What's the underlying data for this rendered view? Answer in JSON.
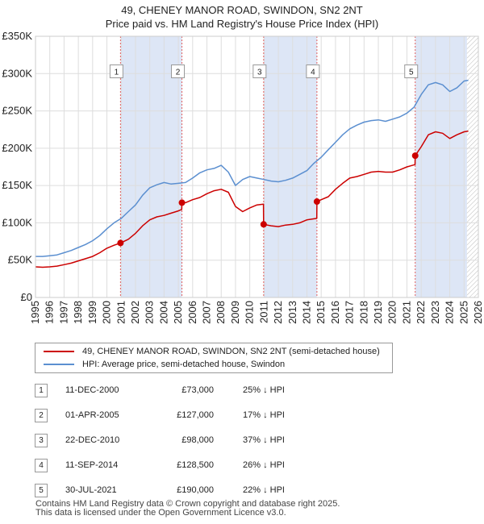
{
  "title_line1": "49, CHENEY MANOR ROAD, SWINDON, SN2 2NT",
  "title_line2": "Price paid vs. HM Land Registry's House Price Index (HPI)",
  "colors": {
    "price": "#cc0000",
    "hpi": "#5b8fd0",
    "shade": "#dde6f6",
    "marker_line": "#e06060"
  },
  "chart_data": {
    "type": "line",
    "xlim": [
      1995,
      2026
    ],
    "ylim": [
      0,
      350000
    ],
    "y_ticks": [
      {
        "value": 0,
        "label": "£0"
      },
      {
        "value": 50000,
        "label": "£50K"
      },
      {
        "value": 100000,
        "label": "£100K"
      },
      {
        "value": 150000,
        "label": "£150K"
      },
      {
        "value": 200000,
        "label": "£200K"
      },
      {
        "value": 250000,
        "label": "£250K"
      },
      {
        "value": 300000,
        "label": "£300K"
      },
      {
        "value": 350000,
        "label": "£350K"
      }
    ],
    "x_ticks": [
      "1995",
      "1996",
      "1997",
      "1998",
      "1999",
      "2000",
      "2001",
      "2002",
      "2003",
      "2004",
      "2005",
      "2006",
      "2007",
      "2008",
      "2009",
      "2010",
      "2011",
      "2012",
      "2013",
      "2014",
      "2015",
      "2016",
      "2017",
      "2018",
      "2019",
      "2020",
      "2021",
      "2022",
      "2023",
      "2024",
      "2025",
      "2026"
    ],
    "shaded_ranges": [
      [
        2000.95,
        2005.25
      ],
      [
        2010.97,
        2014.7
      ],
      [
        2021.58,
        2025.2
      ]
    ],
    "hatch_from": 2025.2,
    "series": [
      {
        "name": "49, CHENEY MANOR ROAD, SWINDON, SN2 2NT (semi-detached house)",
        "key": "price",
        "x": [
          1995.0,
          1995.5,
          1996.0,
          1996.5,
          1997.0,
          1997.5,
          1998.0,
          1998.5,
          1999.0,
          1999.5,
          2000.0,
          2000.5,
          2000.95,
          2001.5,
          2002.0,
          2002.5,
          2003.0,
          2003.5,
          2004.0,
          2004.5,
          2005.0,
          2005.24,
          2005.25,
          2005.5,
          2006.0,
          2006.5,
          2007.0,
          2007.5,
          2008.0,
          2008.5,
          2009.0,
          2009.5,
          2010.0,
          2010.5,
          2010.96,
          2010.97,
          2011.5,
          2012.0,
          2012.5,
          2013.0,
          2013.5,
          2014.0,
          2014.69,
          2014.7,
          2015.0,
          2015.5,
          2016.0,
          2016.5,
          2017.0,
          2017.5,
          2018.0,
          2018.5,
          2019.0,
          2019.5,
          2020.0,
          2020.5,
          2021.0,
          2021.57,
          2021.58,
          2022.0,
          2022.5,
          2023.0,
          2023.5,
          2024.0,
          2024.5,
          2025.0,
          2025.3
        ],
        "values": [
          41000,
          40500,
          41000,
          42000,
          44000,
          46000,
          49000,
          52000,
          55000,
          60000,
          66000,
          70000,
          73000,
          78000,
          86000,
          96000,
          104000,
          108000,
          110000,
          113000,
          116000,
          118000,
          127000,
          127000,
          131000,
          134000,
          139000,
          143000,
          145000,
          141000,
          122000,
          115000,
          120000,
          124000,
          125000,
          98000,
          96000,
          95000,
          97000,
          98000,
          100000,
          104000,
          106000,
          128500,
          131000,
          135000,
          145000,
          153000,
          160000,
          162000,
          165000,
          168000,
          169000,
          168000,
          168000,
          171000,
          175000,
          178000,
          190000,
          202000,
          218000,
          222000,
          220000,
          213000,
          218000,
          222000,
          223000
        ]
      },
      {
        "name": "HPI: Average price, semi-detached house, Swindon",
        "key": "hpi",
        "x": [
          1995.0,
          1995.5,
          1996.0,
          1996.5,
          1997.0,
          1997.5,
          1998.0,
          1998.5,
          1999.0,
          1999.5,
          2000.0,
          2000.5,
          2001.0,
          2001.5,
          2002.0,
          2002.5,
          2003.0,
          2003.5,
          2004.0,
          2004.5,
          2005.0,
          2005.5,
          2006.0,
          2006.5,
          2007.0,
          2007.5,
          2008.0,
          2008.5,
          2009.0,
          2009.5,
          2010.0,
          2010.5,
          2011.0,
          2011.5,
          2012.0,
          2012.5,
          2013.0,
          2013.5,
          2014.0,
          2014.5,
          2015.0,
          2015.5,
          2016.0,
          2016.5,
          2017.0,
          2017.5,
          2018.0,
          2018.5,
          2019.0,
          2019.5,
          2020.0,
          2020.5,
          2021.0,
          2021.5,
          2022.0,
          2022.5,
          2023.0,
          2023.5,
          2024.0,
          2024.5,
          2025.0,
          2025.3
        ],
        "values": [
          55000,
          55000,
          56000,
          57000,
          60000,
          63000,
          67000,
          71000,
          76000,
          83000,
          92000,
          100000,
          106000,
          115000,
          124000,
          137000,
          147000,
          151000,
          154000,
          152000,
          153000,
          154000,
          160000,
          167000,
          171000,
          173000,
          177000,
          168000,
          150000,
          158000,
          162000,
          160000,
          158000,
          156000,
          155000,
          157000,
          160000,
          165000,
          170000,
          180000,
          188000,
          198000,
          208000,
          218000,
          226000,
          231000,
          235000,
          237000,
          238000,
          236000,
          239000,
          242000,
          247000,
          255000,
          272000,
          285000,
          288000,
          285000,
          276000,
          281000,
          290000,
          291000
        ]
      }
    ],
    "sales": [
      {
        "num": "1",
        "x": 2000.95,
        "price": 73000,
        "label_y": 303000
      },
      {
        "num": "2",
        "x": 2005.25,
        "price": 127000,
        "label_y": 303000
      },
      {
        "num": "3",
        "x": 2010.97,
        "price": 98000,
        "label_y": 303000
      },
      {
        "num": "4",
        "x": 2014.7,
        "price": 128500,
        "label_y": 303000
      },
      {
        "num": "5",
        "x": 2021.58,
        "price": 190000,
        "label_y": 303000
      }
    ]
  },
  "legend": {
    "price_label": "49, CHENEY MANOR ROAD, SWINDON, SN2 2NT (semi-detached house)",
    "hpi_label": "HPI: Average price, semi-detached house, Swindon"
  },
  "sales_table": [
    {
      "num": "1",
      "date": "11-DEC-2000",
      "price": "£73,000",
      "hpi": "25% ↓ HPI"
    },
    {
      "num": "2",
      "date": "01-APR-2005",
      "price": "£127,000",
      "hpi": "17% ↓ HPI"
    },
    {
      "num": "3",
      "date": "22-DEC-2010",
      "price": "£98,000",
      "hpi": "37% ↓ HPI"
    },
    {
      "num": "4",
      "date": "11-SEP-2014",
      "price": "£128,500",
      "hpi": "26% ↓ HPI"
    },
    {
      "num": "5",
      "date": "30-JUL-2021",
      "price": "£190,000",
      "hpi": "22% ↓ HPI"
    }
  ],
  "footer_line1": "Contains HM Land Registry data © Crown copyright and database right 2025.",
  "footer_line2": "This data is licensed under the Open Government Licence v3.0."
}
